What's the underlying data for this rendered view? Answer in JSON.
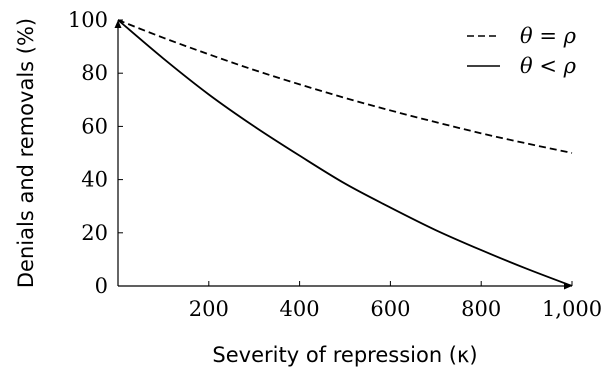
{
  "chart_data": {
    "type": "line",
    "xlabel": "Severity of repression (κ)",
    "ylabel": "Denials and removals (%)",
    "xlim": [
      0,
      1000
    ],
    "ylim": [
      0,
      100
    ],
    "xticks": [
      200,
      400,
      600,
      800,
      1000
    ],
    "xtick_labels": [
      "200",
      "400",
      "600",
      "800",
      "1,000"
    ],
    "yticks": [
      0,
      20,
      40,
      60,
      80,
      100
    ],
    "ytick_labels": [
      "0",
      "20",
      "40",
      "60",
      "80",
      "100"
    ],
    "grid": false,
    "legend_position": "top-right",
    "series": [
      {
        "name": "θ = ρ",
        "style": "dashed",
        "color": "#000000",
        "x": [
          0,
          100,
          200,
          300,
          400,
          500,
          600,
          700,
          800,
          900,
          1000
        ],
        "y": [
          100,
          93.3,
          87.1,
          81.2,
          75.8,
          70.7,
          66.0,
          61.6,
          57.4,
          53.6,
          50.0
        ]
      },
      {
        "name": "θ < ρ",
        "style": "solid",
        "color": "#000000",
        "x": [
          0,
          100,
          200,
          300,
          400,
          500,
          600,
          700,
          800,
          900,
          1000
        ],
        "y": [
          100,
          85.5,
          72.0,
          60.0,
          49.0,
          38.5,
          29.5,
          21.0,
          13.5,
          6.5,
          0
        ]
      }
    ]
  }
}
